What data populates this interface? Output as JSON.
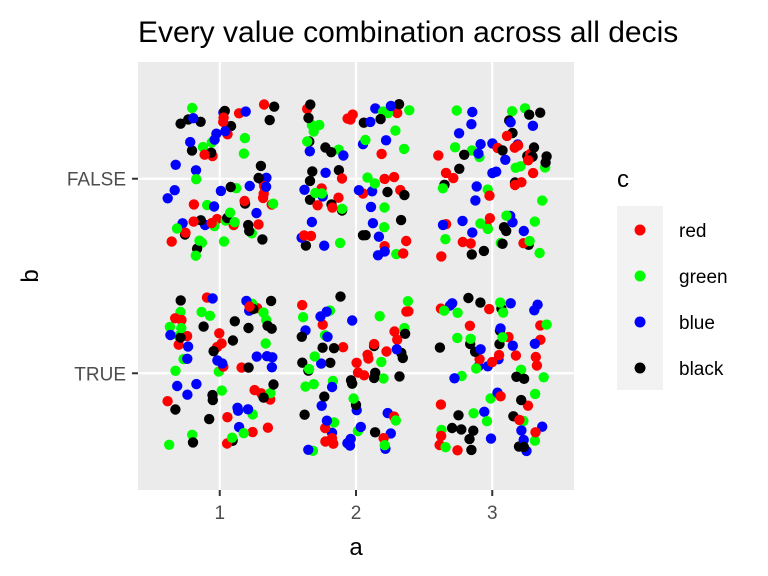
{
  "chart_data": {
    "type": "scatter",
    "title": "Every value combination across all decis",
    "xlabel": "a",
    "ylabel": "b",
    "x_categories": [
      "1",
      "2",
      "3"
    ],
    "y_categories": [
      "TRUE",
      "FALSE"
    ],
    "xlim": [
      0.4,
      3.6
    ],
    "ylim": [
      0.4,
      2.6
    ],
    "jitter": 0.4,
    "grid": true,
    "legend": {
      "title": "c",
      "position": "right",
      "entries": [
        {
          "name": "red",
          "color": "#ff0000"
        },
        {
          "name": "green",
          "color": "#00ff00"
        },
        {
          "name": "blue",
          "color": "#0000ff"
        },
        {
          "name": "black",
          "color": "#000000"
        }
      ]
    },
    "panel_background": "#ebebeb",
    "grid_color": "#ffffff",
    "points_per_group": {
      "red": 20,
      "green": 20,
      "blue": 20,
      "black": 20
    }
  }
}
